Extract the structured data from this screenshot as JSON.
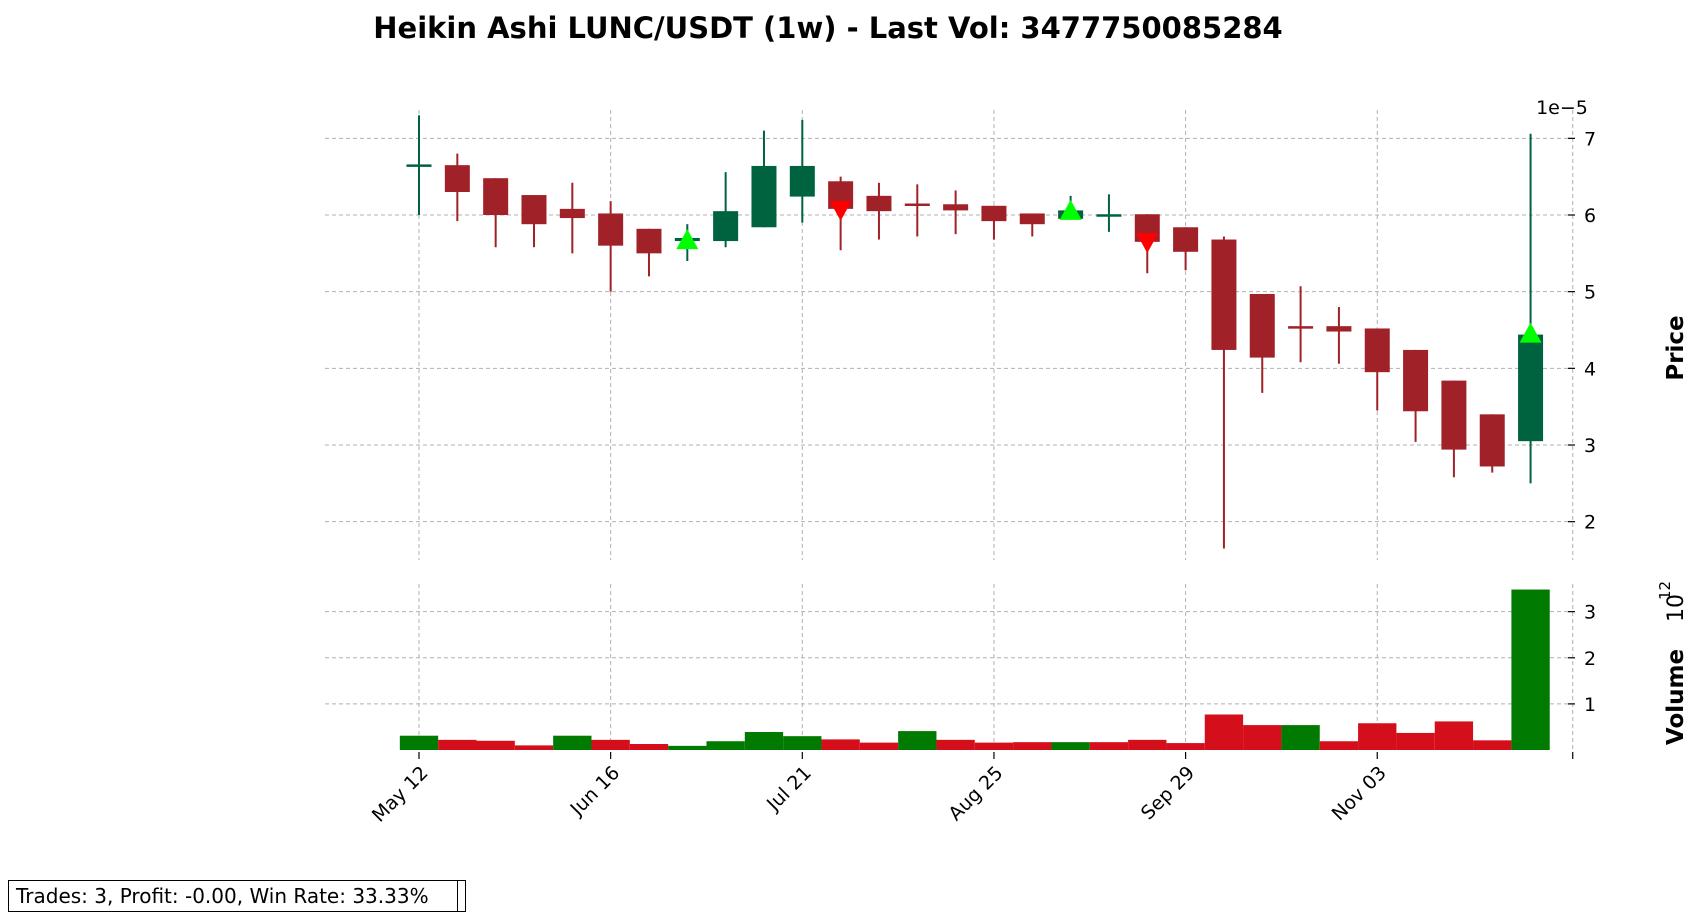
{
  "chart_data": {
    "type": "candlestick",
    "title": "Heikin Ashi LUNC/USDT (1w) - Last Vol: 3477750085284",
    "price_panel": {
      "ylabel": "Price",
      "offset_label": "1e−5",
      "ylim": [
        1.5,
        7.5
      ],
      "yticks": [
        2,
        3,
        4,
        5,
        6,
        7
      ]
    },
    "volume_panel": {
      "ylabel": "Volume",
      "offset_label": "10",
      "offset_exponent": "12",
      "ylim": [
        0,
        3.6
      ],
      "yticks": [
        1,
        2,
        3
      ]
    },
    "x_ticks": [
      {
        "index": 0,
        "label": "May 12"
      },
      {
        "index": 5,
        "label": "Jun 16"
      },
      {
        "index": 10,
        "label": "Jul 21"
      },
      {
        "index": 15,
        "label": "Aug 25"
      },
      {
        "index": 20,
        "label": "Sep 29"
      },
      {
        "index": 25,
        "label": "Nov 03"
      }
    ],
    "candles": [
      {
        "open": 6.65,
        "high": 7.3,
        "low": 6.0,
        "close": 6.66
      },
      {
        "open": 6.65,
        "high": 6.8,
        "low": 5.92,
        "close": 6.3
      },
      {
        "open": 6.48,
        "high": 6.48,
        "low": 5.58,
        "close": 6.0
      },
      {
        "open": 6.26,
        "high": 6.26,
        "low": 5.58,
        "close": 5.88
      },
      {
        "open": 6.08,
        "high": 6.42,
        "low": 5.5,
        "close": 5.96
      },
      {
        "open": 6.02,
        "high": 6.18,
        "low": 5.0,
        "close": 5.6
      },
      {
        "open": 5.82,
        "high": 5.82,
        "low": 5.2,
        "close": 5.5
      },
      {
        "open": 5.66,
        "high": 5.88,
        "low": 5.4,
        "close": 5.7
      },
      {
        "open": 5.66,
        "high": 6.56,
        "low": 5.58,
        "close": 6.05
      },
      {
        "open": 5.84,
        "high": 7.1,
        "low": 5.84,
        "close": 6.64
      },
      {
        "open": 6.24,
        "high": 7.24,
        "low": 5.9,
        "close": 6.64
      },
      {
        "open": 6.44,
        "high": 6.5,
        "low": 5.54,
        "close": 6.08
      },
      {
        "open": 6.25,
        "high": 6.42,
        "low": 5.68,
        "close": 6.05
      },
      {
        "open": 6.15,
        "high": 6.4,
        "low": 5.72,
        "close": 6.13
      },
      {
        "open": 6.14,
        "high": 6.32,
        "low": 5.75,
        "close": 6.06
      },
      {
        "open": 6.12,
        "high": 6.12,
        "low": 5.68,
        "close": 5.92
      },
      {
        "open": 6.02,
        "high": 6.02,
        "low": 5.72,
        "close": 5.88
      },
      {
        "open": 5.95,
        "high": 6.25,
        "low": 5.95,
        "close": 6.06
      },
      {
        "open": 6.0,
        "high": 6.27,
        "low": 5.78,
        "close": 6.01
      },
      {
        "open": 6.01,
        "high": 6.01,
        "low": 5.24,
        "close": 5.65
      },
      {
        "open": 5.84,
        "high": 5.84,
        "low": 5.28,
        "close": 5.52
      },
      {
        "open": 5.68,
        "high": 5.72,
        "low": 1.65,
        "close": 4.24
      },
      {
        "open": 4.97,
        "high": 4.97,
        "low": 3.68,
        "close": 4.14
      },
      {
        "open": 4.55,
        "high": 5.07,
        "low": 4.08,
        "close": 4.53
      },
      {
        "open": 4.55,
        "high": 4.8,
        "low": 4.06,
        "close": 4.48
      },
      {
        "open": 4.52,
        "high": 4.52,
        "low": 3.45,
        "close": 3.95
      },
      {
        "open": 4.24,
        "high": 4.24,
        "low": 3.04,
        "close": 3.44
      },
      {
        "open": 3.84,
        "high": 3.84,
        "low": 2.58,
        "close": 2.94
      },
      {
        "open": 3.4,
        "high": 3.4,
        "low": 2.64,
        "close": 2.72
      },
      {
        "open": 3.05,
        "high": 7.06,
        "low": 2.5,
        "close": 4.44
      }
    ],
    "volume": [
      0.31,
      0.22,
      0.2,
      0.1,
      0.31,
      0.22,
      0.13,
      0.09,
      0.19,
      0.39,
      0.3,
      0.23,
      0.16,
      0.41,
      0.22,
      0.16,
      0.17,
      0.17,
      0.17,
      0.22,
      0.15,
      0.77,
      0.54,
      0.54,
      0.19,
      0.58,
      0.37,
      0.62,
      0.21,
      3.48
    ],
    "volume_up": [
      true,
      false,
      false,
      false,
      true,
      false,
      false,
      true,
      true,
      true,
      true,
      false,
      false,
      true,
      false,
      false,
      false,
      true,
      false,
      false,
      false,
      false,
      false,
      true,
      false,
      false,
      false,
      false,
      false,
      true
    ],
    "buy_markers": [
      {
        "index": 7,
        "price": 5.66
      },
      {
        "index": 17,
        "price": 6.04
      },
      {
        "index": 29,
        "price": 4.44
      }
    ],
    "sell_markers": [
      {
        "index": 11,
        "price": 6.08
      },
      {
        "index": 19,
        "price": 5.66
      }
    ],
    "colors": {
      "up_candle": "#006340",
      "down_candle": "#a02128",
      "up_volume": "#007a00",
      "down_volume": "#d40e1a",
      "buy_marker": "#00ff00",
      "sell_marker": "#ff0000"
    },
    "grid": true
  },
  "info_box": {
    "text": "Trades: 3, Profit: -0.00, Win Rate: 33.33%",
    "behind_suffix": "%"
  }
}
